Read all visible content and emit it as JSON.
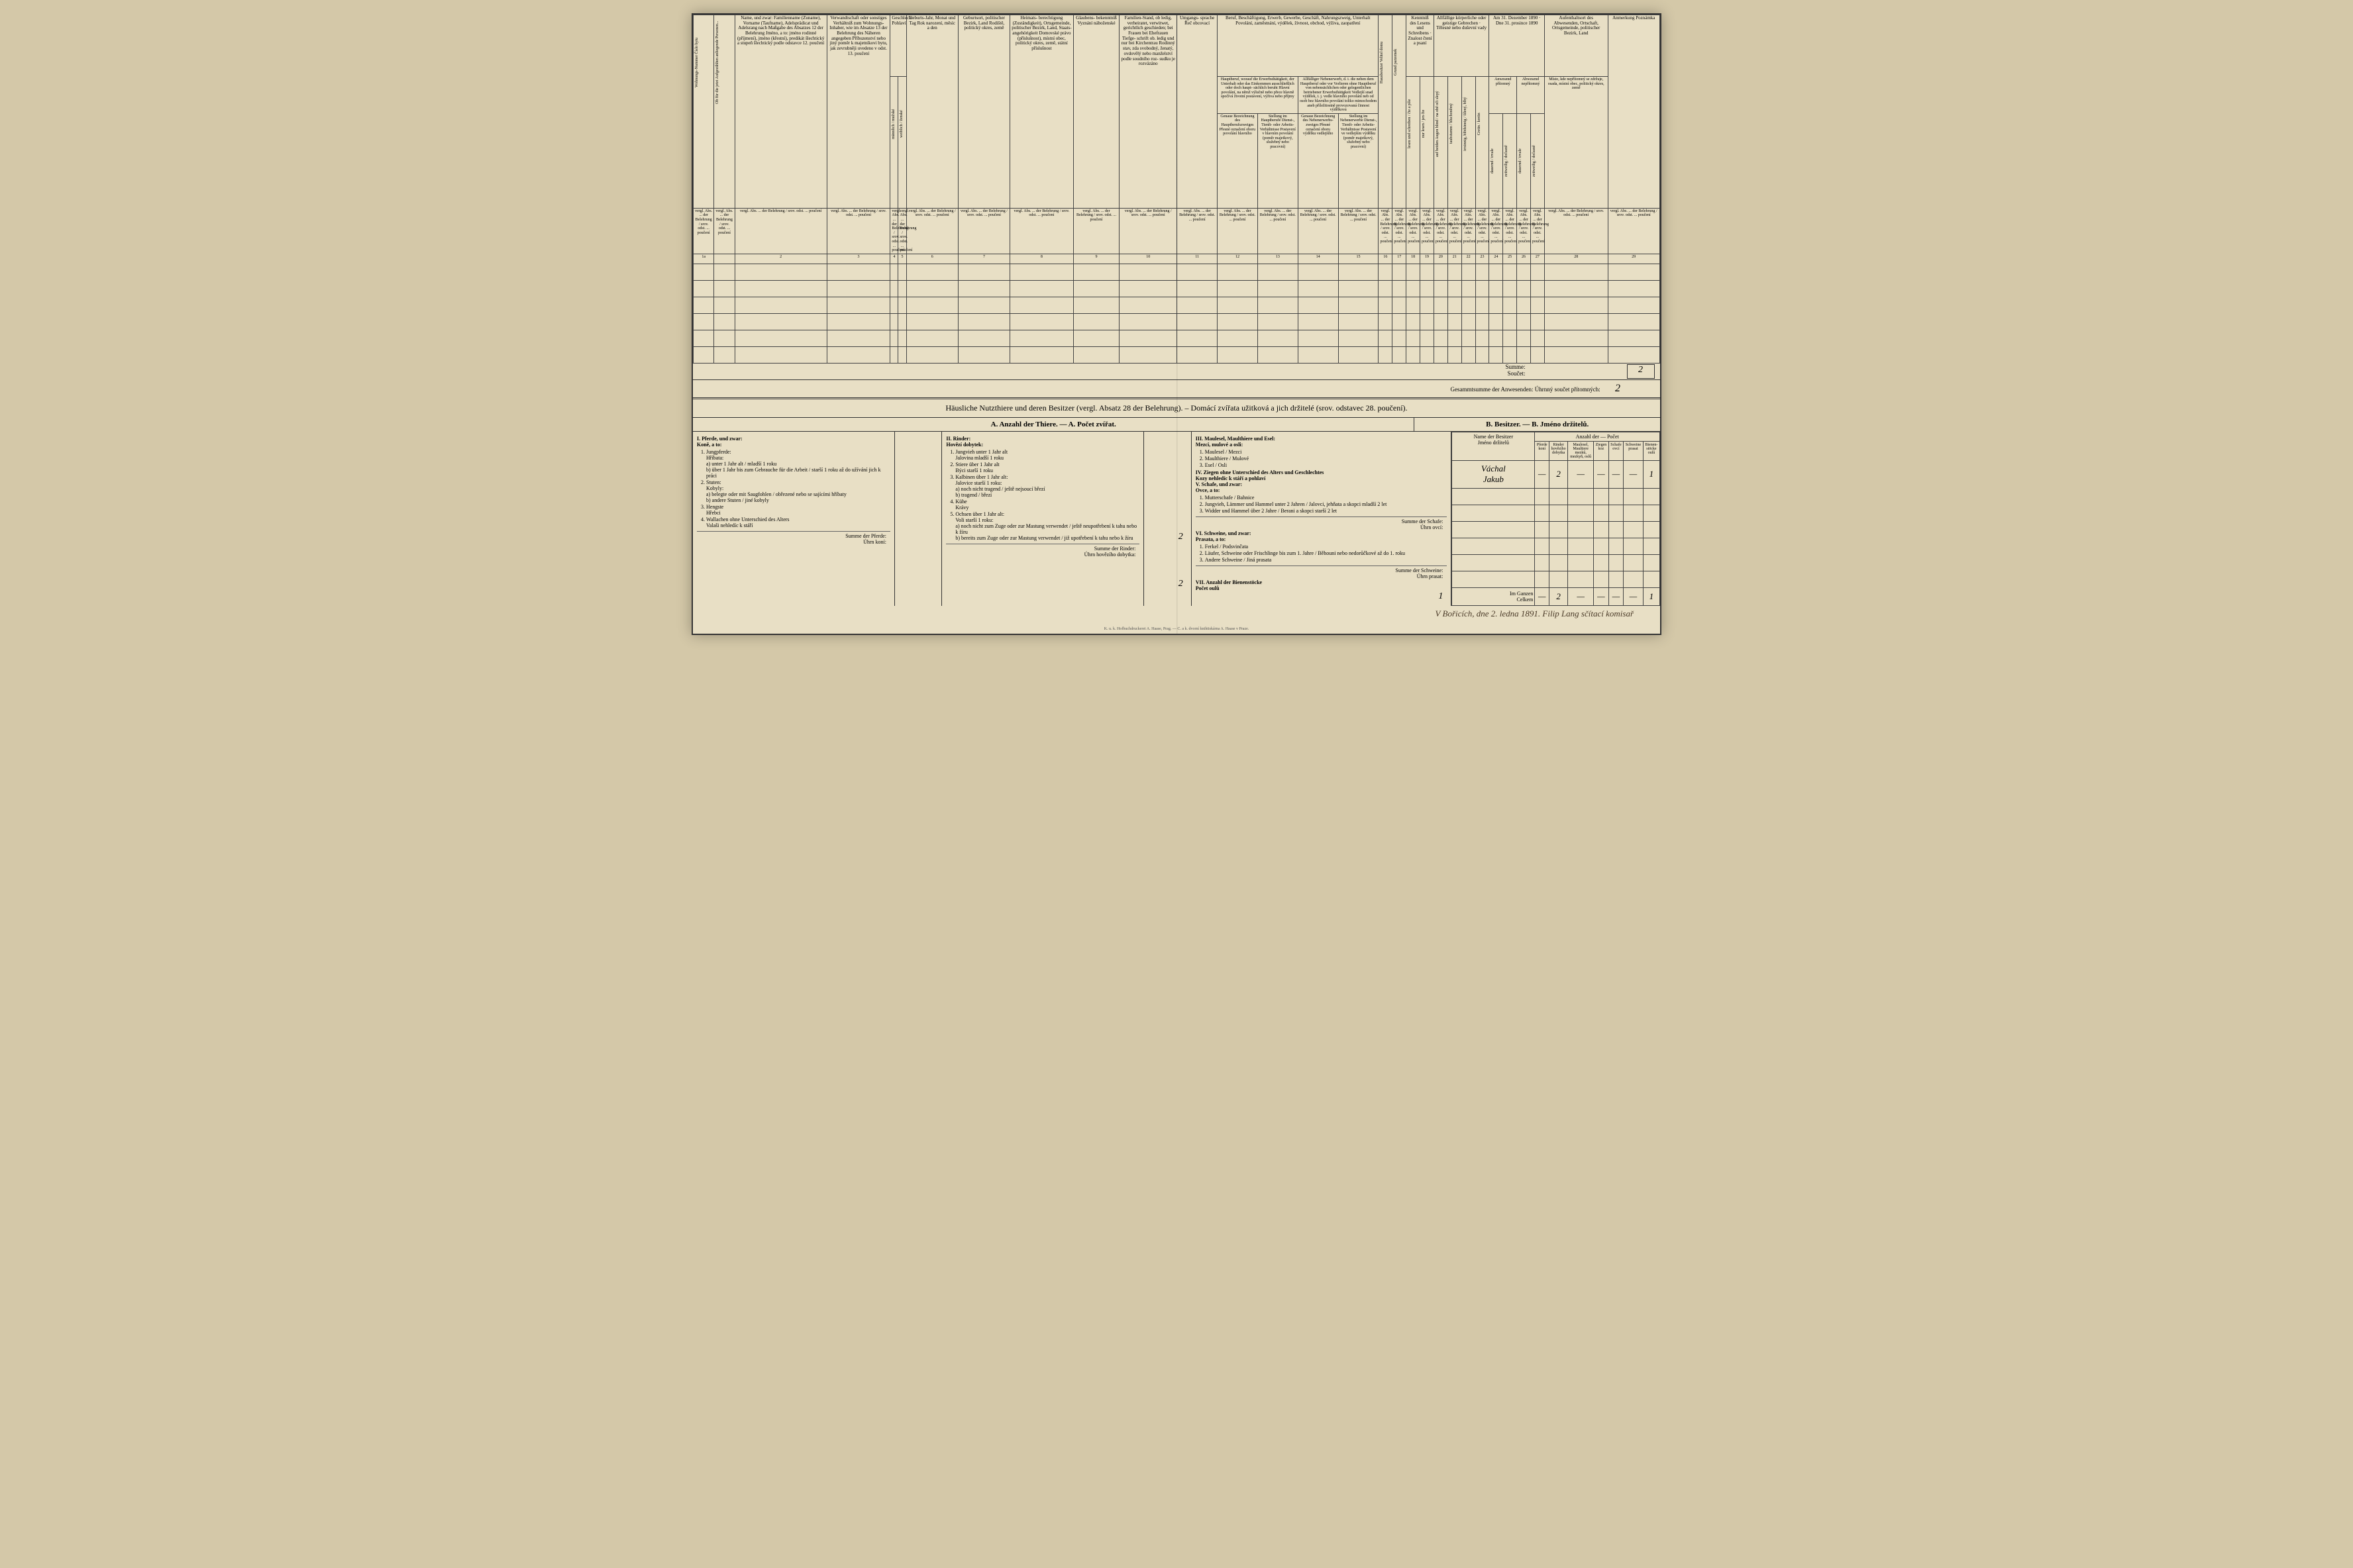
{
  "census": {
    "group_headers": {
      "beruf": "Beruf, Beschäftigung, Erwerb, Gewerbe, Geschäft, Nahrungszweig, Unterhalt\nPovolání, zaměstnání, výdělek, živnost, obchod, výživa, zaopatření",
      "schreiben": "Kenntniß des Lesens und Schreibens · Znalost čtení a psaní",
      "gebrechen": "Allfällige körperliche oder geistige Gebrechen · Tělesné nebo duševní vady",
      "dezember": "Am 31. Dezember 1890 · Dne 31. prosince 1890",
      "aufenthalt": "Aufenthaltsort des Abwesenden, Ortschaft, Ortsgemeinde, politischer Bezirk, Land"
    },
    "cols": [
      {
        "w": 18,
        "h1": "Wohnungs-Nummer\nČíslo bytu",
        "vert": true,
        "ref": "1a | 1b"
      },
      {
        "w": 18,
        "h1": "Ob für die jetzt Aufgezählten anliegende Personen...",
        "vert": true,
        "ref": ""
      },
      {
        "w": 80,
        "h1": "Name,\nund zwar:\nFamilienname (Zuname),\nVorname (Taufname),\nAdelsprädicat und Adelsrang\nnach Maßgabe des Absatzes 12\nder Belehrung\n\nJméno,\na to:\njméno rodinné (příjmení),\njméno (křestní),\npredikát šlechtický a stupeň\nšlechtický podle odstavce 12.\npoučení",
        "ref": "2"
      },
      {
        "w": 55,
        "h1": "Verwandtschaft\noder sonstiges\nVerhältniß zum\nWohnungs-\nInhaber, wie im\nAbsatze 13 der\nBelehrung des\nNäheren angegeben\n\nPříbuzenství\nnebo jiný poměr\nk majetníkovi\nbytu, jak zevrubněji uvedeno\nv odst. 13. poučení",
        "ref": "3"
      },
      {
        "w": 14,
        "h1": "Geschlecht\nPohlaví",
        "sub": [
          "männlich / mužské",
          "weiblich / ženské"
        ],
        "vert_sub": true,
        "ref": "4 | 5"
      },
      {
        "w": 45,
        "h1": "Geburts-Jahr,\nMonat\nund Tag\n\nRok narození,\nměsíc\na den",
        "ref": "6"
      },
      {
        "w": 45,
        "h1": "Geburtsort,\npolitischer Bezirk,\nLand\n\nRodiště,\npolitický okres,\nzemě",
        "ref": "7"
      },
      {
        "w": 55,
        "h1": "Heimats-\nberechtigung\n(Zuständigkeit),\nOrtsgemeinde,\npolitischer Bezirk,\nLand,\nStaats-\nangehörigkeit\n\nDomovské právo\n(příslušnost),\nmístní obec,\npolitický okres,\nzemě,\nstátní příslušnost",
        "ref": "8"
      },
      {
        "w": 40,
        "h1": "Glaubens-\nbekenntniß\n\nVyznání\nnáboženské",
        "ref": "9"
      },
      {
        "w": 50,
        "h1": "Familien-Stand,\nob ledig, verheiratet,\nverwitwet, gerichtlich\ngeschieden; bei Frauen\nbei Ehefrauen Tiefge-\nschrift ob. ledig und\nnur bei Kirchentrau\n\nRodinný stav,\nzda svobodný,\nženatý, ovdovělý\nnebo manželství podle\nsoudního roz-\nsudku je rozvázáno",
        "ref": "10"
      },
      {
        "w": 35,
        "h1": "Umgangs-\nsprache\n\nŘeč\nobcovací",
        "ref": "11"
      },
      {
        "w": 70,
        "h1": "Hauptberuf,\nworauf die Erwerbsthätigkeit, der Unterhalt oder\ndas Einkommen ausschließlich oder doch haupt-\nsächlich beruht\n\nHlavní povolání,\nna němž výlučně nebo přece hlavně spočívá\nživotní postavení, výživa nebo příjmy",
        "sub": [
          "Genaue Bezeichnung des Hauptberufszweiges\nPřesné označení oboru povolání hlavního",
          "Stellung im Hauptberufe Dienst-, Tienft- oder Arbeits-Verhältnisse\nPostavení v hlavním povolání (poměr majetkový, služebný nebo pracovní)"
        ],
        "ref": "12 | 13"
      },
      {
        "w": 70,
        "h1": "Allfälliger Nebenerwerb,\nd. i. die neben dem Hauptberuf oder vor Verlieren\nohne Hauptberuf von nebensächlichen oder gelegentlichen\nbetriebener Erwerbsthätigkeit\n\nVedlejší snad výdělek,\nt. j. vedle hlavního povolání neb od osob bez\nhlavního povolání toliko mimochodem aneb\npříležitostně provozovaná činnost výdělková",
        "sub": [
          "Genaue Bezeichnung des Nebenerwerbs-zweiges\nPřesné označení oboru výdělku vedlejšího",
          "Stellung im Nebenerwerbe Dienst-, Tienft- oder Arbeits-Verhältnisse\nPostavení ve vedlejším výdělku (poměr majetkový, služebný nebo pracovní)"
        ],
        "ref": "14 | 15"
      },
      {
        "w": 12,
        "h1": "Hausbesitzer\nVelitel domu",
        "vert": true,
        "ref": "16"
      },
      {
        "w": 12,
        "h1": "Grund parzemek",
        "vert": true,
        "ref": "17"
      },
      {
        "w": 12,
        "h1": "lesen und schreiben / čte a píše",
        "vert": true,
        "ref": "18"
      },
      {
        "w": 12,
        "h1": "nur lesen / jen čte",
        "vert": true,
        "ref": "19"
      },
      {
        "w": 12,
        "h1": "auf beiden Augen blind / na obě oči slepý",
        "vert": true,
        "ref": "20"
      },
      {
        "w": 12,
        "h1": "taubstumm / hluchoněmý",
        "vert": true,
        "ref": "21"
      },
      {
        "w": 12,
        "h1": "irrsinnig, blödsinnig / šílený, blbý",
        "vert": true,
        "ref": "22"
      },
      {
        "w": 12,
        "h1": "Cretin / kretin",
        "vert": true,
        "ref": "23"
      },
      {
        "w": 12,
        "h1": "dauernd / trvale",
        "vert": true,
        "ref": "24"
      },
      {
        "w": 12,
        "h1": "zeitweilig / dočasně",
        "vert": true,
        "ref": "25"
      },
      {
        "w": 12,
        "h1": "dauernd / trvale",
        "vert": true,
        "ref": "26"
      },
      {
        "w": 12,
        "h1": "zeitweilig / dočasně",
        "vert": true,
        "ref": "27"
      },
      {
        "w": 55,
        "h1": "Místo,\nkde nepřítomný\nse zdržuje,\nosada, místní\nobec, politický\nokres, země",
        "ref": "28"
      },
      {
        "w": 45,
        "h1": "Anmerkung\n\nPoznámka",
        "ref": "29"
      }
    ],
    "ref_prefix": "vergl. Abs. ... der Belehrung / srov. odst. ... poučení",
    "anwesend": "Anwesend přítomný",
    "abwesend": "Abwesend nepřítomný",
    "empty_rows": 6,
    "summe_label": "Summe:\nSoučet:",
    "summe_value": "2",
    "gesamt_label": "Gesammtsumme der Anwesenden:\nÚhrnný součet přítomných:",
    "gesamt_value": "2"
  },
  "animals": {
    "title": "Häusliche Nutzthiere und deren Besitzer (vergl. Absatz 28 der Belehrung). – Domácí zvířata užitková a jich držitelé (srov. odstavec 28. poučení).",
    "a_title": "A. Anzahl der Thiere. — A. Počet zvířat.",
    "b_title": "B. Besitzer. — B. Jméno držitelů.",
    "col1": {
      "head": "I. Pferde, und zwar:\nKoně, a to:",
      "items": [
        "Jungpferde:\nHříbata:\n  a) unter 1 Jahr alt / mladší 1 roku\n  b) über 1 Jahr bis zum Gebrauche für die Arbeit / starší 1 roku až do užívání jich k práci",
        "Stuten:\nKobyly:\n  a) belegte oder mit Saugfohlen / obřezené nebo se sajícími hříbaty\n  b) andere Stuten / jiné kobyly",
        "Hengste\nHřebci",
        "Wallachen ohne Unterschied des Alters\nValaši nehledíc k stáří"
      ],
      "sum": "Summe der Pferde:\nÚhrn koní:",
      "sum_val": ""
    },
    "col2": {
      "head": "II. Rinder:\nHovězí dobytek:",
      "items": [
        "Jungvieh unter 1 Jahr alt\nJalovina mladší 1 roku",
        "Stiere über 1 Jahr alt\nBýci starší 1 roku",
        "Kalbinen über 1 Jahr alt:\nJalovice starší 1 roku:\n  a) noch nicht tragend / ještě nejsoucí březí\n  b) tragend / březí",
        "Kühe\nKrávy",
        "Ochsen über 1 Jahr alt:\nVoli starší 1 roku:\n  a) noch nicht zum Zuge oder zur Mastung verwendet / ještě neupotřebení k tahu nebo k žíru\n  b) bereits zum Zuge oder zur Mastung verwendet / již upotřebení k tahu nebo k žíru"
      ],
      "val4": "2",
      "sum": "Summe der Rinder:\nÚhrn hovězího dobytka:",
      "sum_val": "2"
    },
    "col3": {
      "groups": [
        {
          "head": "III. Maulesel, Maulthiere und Esel:\nMezci, mulové a osli:",
          "items": [
            "Maulesel / Mezci",
            "Maulthiere / Mulové",
            "Esel / Osli"
          ]
        },
        {
          "head": "IV. Ziegen ohne Unterschied des Alters und Geschlechtes\nKozy nehledíc k stáří a pohlaví"
        },
        {
          "head": "V. Schafe, und zwar:\nOvce, a to:",
          "items": [
            "Mutterschafe / Bahnice",
            "Jungvieh, Lämmer und Hammel unter 2 Jahren / Jalovci, jehňata a skopci mladší 2 let",
            "Widder und Hammel über 2 Jahre / Berani a skopci starší 2 let"
          ],
          "sum": "Summe der Schafe:\nÚhrn ovcí:"
        },
        {
          "head": "VI. Schweine, und zwar:\nPrasata, a to:",
          "items": [
            "Ferkel / Podsvinčata",
            "Läufer, Schweine oder Frischlinge bis zum 1. Jahre / Běhouni nebo nedorůčkové až do 1. roku",
            "Andere Schweine / Jiná prasata"
          ],
          "sum": "Summe der Schweine:\nÚhrn prasat:"
        },
        {
          "head": "VII. Anzahl der Bienenstöcke\nPočet oulů",
          "val": "1"
        }
      ]
    },
    "owners": {
      "anzahl": "Anzahl der — Počet",
      "name_header": "Name der Besitzer\nJméno držitelů",
      "cols": [
        "Pferde\nkoní",
        "Rinder\nhovězího\ndobytka",
        "Maulesel,\nMaultiere\nmezků,\nmezkyň, oslů",
        "Ziegen\nkoz",
        "Schafe\novcí",
        "Schweine\nprasat",
        "Bienen-\nstöcke\noulů"
      ],
      "rows": [
        {
          "name": "Váchal\nJakub",
          "vals": [
            "—",
            "2",
            "—",
            "—",
            "—",
            "—",
            "1"
          ]
        }
      ],
      "total_label": "Im Ganzen\nCelkem",
      "total_vals": [
        "—",
        "2",
        "—",
        "—",
        "—",
        "—",
        "1"
      ]
    }
  },
  "signature": "V Bořicích, dne 2. ledna 1891.  Filip Lang  sčítací komisař",
  "imprint": "K. u. k. Hofbuchdruckerei A. Haase, Prag. — C. a k. dvorní knihtiskárna A. Haase v Praze."
}
